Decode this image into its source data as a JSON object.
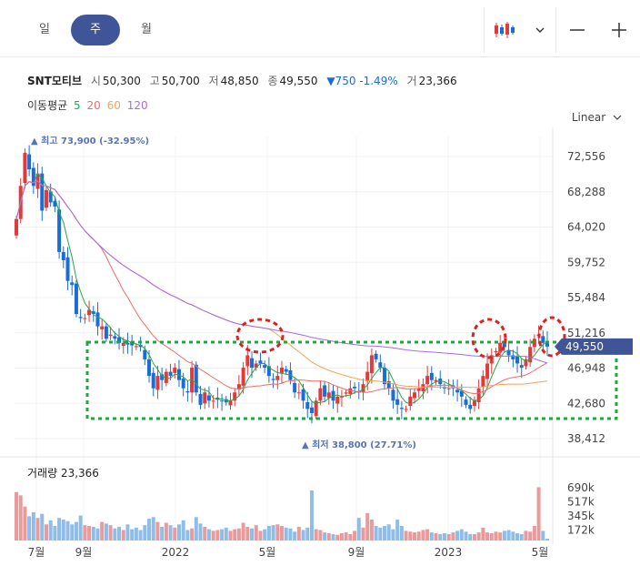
{
  "tabs": [
    "일",
    "주",
    "월"
  ],
  "active_tab": "주",
  "toolbar": {
    "chart_icon": "candlestick-icon",
    "dropdown_icon": "chevron-down-icon",
    "zoom_out": "−",
    "zoom_in": "+"
  },
  "stock": {
    "name": "SNT모티브",
    "open_label": "시",
    "open": "50,300",
    "high_label": "고",
    "high": "50,700",
    "low_label": "저",
    "low": "48,850",
    "close_label": "종",
    "close": "49,550",
    "change": "▼750 -1.49%",
    "volume_label": "거",
    "volume": "23,366"
  },
  "moving_average": {
    "label": "이동평균",
    "p5": "5",
    "p20": "20",
    "p60": "60",
    "p120": "120"
  },
  "scale_button": "Linear",
  "volume_title": "거래량 23,366",
  "colors": {
    "up": "#e03a3a",
    "down": "#1a6dd8",
    "ma5": "#28a745",
    "ma20": "#ef6b6b",
    "ma60": "#f5a35a",
    "ma120": "#a66be6",
    "accent": "#3f5597"
  },
  "chart_data": {
    "type": "candlestick",
    "y_ticks": [
      "72,556",
      "68,288",
      "64,020",
      "59,752",
      "55,484",
      "51,216",
      "46,948",
      "42,680",
      "38,412"
    ],
    "ylim": [
      38412,
      72556
    ],
    "x_ticks": [
      "7월",
      "9월",
      "2022",
      "5월",
      "9월",
      "2023",
      "5월"
    ],
    "max_label": "최고 73,900 (-32.95%)",
    "min_label": "최저 38,800 (27.71%)",
    "current_price": "49,550",
    "volume_ticks": [
      "690k",
      "517k",
      "345k",
      "172k"
    ],
    "closes": [
      65000,
      69000,
      73000,
      71000,
      69000,
      70500,
      66000,
      68500,
      67000,
      66500,
      61000,
      60000,
      57500,
      57000,
      53500,
      53000,
      53000,
      54000,
      53500,
      52000,
      52000,
      50500,
      51000,
      50500,
      50000,
      50000,
      49800,
      49700,
      49600,
      49500,
      48000,
      46000,
      44500,
      46000,
      45500,
      46500,
      46000,
      47000,
      45500,
      44500,
      44000,
      47000,
      44000,
      42500,
      44000,
      43000,
      43000,
      43200,
      43000,
      42800,
      43000,
      44000,
      45000,
      47000,
      48500,
      47000,
      47500,
      47500,
      47000,
      46000,
      45500,
      46000,
      47000,
      46500,
      45500,
      44000,
      44000,
      43000,
      42000,
      41500,
      43000,
      44500,
      43500,
      44000,
      43000,
      43500,
      43500,
      44000,
      44500,
      44500,
      44000,
      45000,
      46500,
      48500,
      48000,
      47000,
      45000,
      44500,
      43000,
      42500,
      42000,
      42000,
      43500,
      44000,
      44500,
      45000,
      46000,
      45500,
      45500,
      45000,
      44500,
      44500,
      44500,
      44000,
      43500,
      42500,
      42000,
      43000,
      44500,
      46000,
      47500,
      48500,
      49000,
      50000,
      49500,
      48500,
      48000,
      47500,
      47000,
      48000,
      49500,
      50500,
      51000,
      50000,
      49550
    ],
    "volumes": [
      600000,
      560000,
      420000,
      300000,
      350000,
      280000,
      330000,
      200000,
      250000,
      180000,
      280000,
      260000,
      240000,
      200000,
      230000,
      310000,
      190000,
      180000,
      170000,
      150000,
      230000,
      210000,
      190000,
      150000,
      170000,
      130000,
      200000,
      140000,
      160000,
      130000,
      190000,
      270000,
      290000,
      230000,
      170000,
      220000,
      190000,
      160000,
      200000,
      250000,
      130000,
      150000,
      290000,
      210000,
      170000,
      140000,
      120000,
      130000,
      140000,
      160000,
      120000,
      140000,
      150000,
      220000,
      170000,
      150000,
      190000,
      120000,
      140000,
      180000,
      190000,
      200000,
      180000,
      160000,
      150000,
      110000,
      170000,
      130000,
      160000,
      620000,
      140000,
      130000,
      100000,
      90000,
      80000,
      70000,
      90000,
      100000,
      80000,
      120000,
      280000,
      160000,
      340000,
      260000,
      180000,
      160000,
      180000,
      200000,
      140000,
      260000,
      180000,
      120000,
      110000,
      100000,
      110000,
      130000,
      140000,
      100000,
      90000,
      80000,
      90000,
      80000,
      100000,
      120000,
      140000,
      110000,
      80000,
      80000,
      100000,
      160000,
      100000,
      90000,
      110000,
      100000,
      120000,
      130000,
      110000,
      90000,
      80000,
      120000,
      110000,
      180000,
      660000,
      120000,
      23366
    ]
  }
}
